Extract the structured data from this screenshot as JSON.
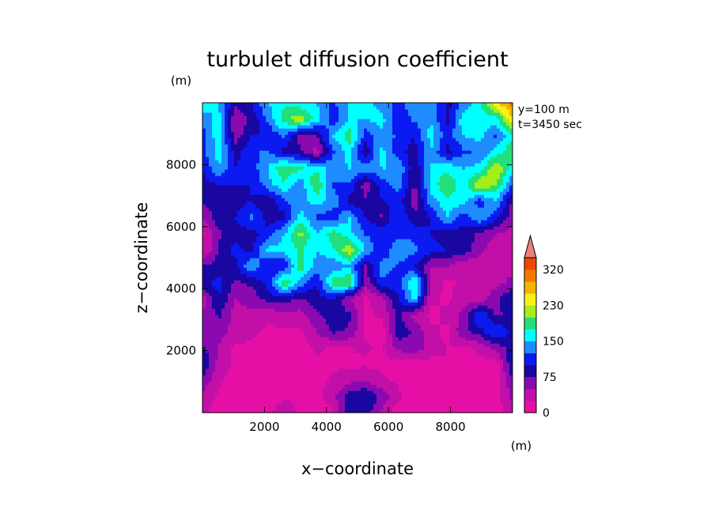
{
  "chart_data": {
    "type": "heatmap",
    "title": "turbulet diffusion coefficient",
    "xlabel": "x−coordinate",
    "ylabel": "z−coordinate",
    "x_unit": "(m)",
    "y_unit": "(m)",
    "annotations": [
      "y=100 m",
      "t=3450 sec"
    ],
    "xlim": [
      0,
      10000
    ],
    "ylim": [
      0,
      10000
    ],
    "xticks": [
      2000,
      4000,
      6000,
      8000
    ],
    "xtick_labels": [
      "2000",
      "4000",
      "6000",
      "8000"
    ],
    "yticks": [
      2000,
      4000,
      6000,
      8000
    ],
    "ytick_labels": [
      "2000",
      "4000",
      "6000",
      "8000"
    ],
    "colorbar": {
      "levels": [
        0,
        25,
        50,
        75,
        100,
        125,
        150,
        175,
        200,
        230,
        260,
        290,
        320
      ],
      "labeled_levels": [
        0,
        75,
        150,
        230,
        320
      ],
      "tick_labels": [
        "0",
        "75",
        "150",
        "230",
        "320"
      ],
      "colors": [
        "#e60fa5",
        "#c20fa8",
        "#8a0ab0",
        "#1a06a0",
        "#0a1af0",
        "#1e8cff",
        "#00ffff",
        "#21e07a",
        "#a5ee1a",
        "#f7f019",
        "#f5b400",
        "#f57800",
        "#f04600"
      ],
      "extend_color": "#e8827a",
      "extend": "max"
    },
    "field_nx": 20,
    "field_ny": 20,
    "field_rows_bottom_to_top": [
      [
        30,
        10,
        10,
        15,
        20,
        45,
        20,
        10,
        20,
        90,
        90,
        40,
        10,
        10,
        20,
        25,
        20,
        10,
        10,
        40
      ],
      [
        40,
        20,
        10,
        5,
        10,
        20,
        20,
        20,
        40,
        90,
        100,
        70,
        30,
        10,
        10,
        20,
        20,
        10,
        15,
        60
      ],
      [
        70,
        30,
        10,
        5,
        5,
        20,
        10,
        15,
        30,
        40,
        50,
        30,
        20,
        10,
        15,
        20,
        10,
        20,
        10,
        70
      ],
      [
        100,
        40,
        20,
        10,
        10,
        10,
        10,
        20,
        20,
        20,
        20,
        20,
        10,
        10,
        20,
        25,
        20,
        20,
        10,
        100
      ],
      [
        80,
        50,
        20,
        20,
        20,
        10,
        10,
        30,
        20,
        25,
        30,
        20,
        60,
        70,
        30,
        25,
        20,
        30,
        60,
        90
      ],
      [
        60,
        60,
        40,
        30,
        20,
        20,
        20,
        50,
        80,
        70,
        20,
        10,
        90,
        70,
        30,
        20,
        70,
        90,
        130,
        90
      ],
      [
        50,
        80,
        40,
        45,
        30,
        40,
        40,
        70,
        90,
        80,
        20,
        30,
        80,
        40,
        20,
        30,
        60,
        130,
        70,
        80
      ],
      [
        40,
        100,
        50,
        60,
        85,
        90,
        70,
        90,
        100,
        50,
        20,
        40,
        100,
        160,
        30,
        20,
        40,
        30,
        70,
        100
      ],
      [
        90,
        110,
        70,
        80,
        110,
        200,
        140,
        100,
        190,
        200,
        60,
        120,
        110,
        180,
        40,
        20,
        30,
        40,
        40,
        60
      ],
      [
        80,
        80,
        90,
        150,
        100,
        100,
        190,
        140,
        130,
        150,
        70,
        140,
        120,
        100,
        50,
        50,
        30,
        30,
        30,
        40
      ],
      [
        20,
        80,
        110,
        90,
        160,
        160,
        180,
        150,
        170,
        220,
        150,
        100,
        150,
        130,
        110,
        100,
        90,
        60,
        30,
        30
      ],
      [
        20,
        70,
        90,
        90,
        110,
        150,
        210,
        150,
        190,
        160,
        120,
        120,
        110,
        120,
        100,
        90,
        90,
        70,
        50,
        40
      ],
      [
        50,
        90,
        100,
        130,
        90,
        90,
        160,
        120,
        110,
        150,
        100,
        70,
        130,
        80,
        100,
        150,
        110,
        150,
        110,
        60
      ],
      [
        80,
        90,
        90,
        100,
        80,
        120,
        140,
        160,
        140,
        90,
        80,
        100,
        110,
        60,
        140,
        170,
        160,
        110,
        150,
        70
      ],
      [
        90,
        100,
        100,
        100,
        140,
        170,
        130,
        200,
        120,
        120,
        60,
        110,
        140,
        70,
        160,
        200,
        160,
        230,
        200,
        120
      ],
      [
        100,
        150,
        100,
        110,
        150,
        200,
        180,
        170,
        140,
        150,
        140,
        150,
        150,
        80,
        150,
        170,
        150,
        160,
        230,
        160
      ],
      [
        120,
        160,
        90,
        120,
        130,
        90,
        80,
        40,
        120,
        160,
        80,
        160,
        110,
        90,
        150,
        90,
        120,
        130,
        160,
        200
      ],
      [
        110,
        170,
        60,
        100,
        100,
        130,
        60,
        70,
        150,
        190,
        110,
        140,
        120,
        100,
        160,
        110,
        150,
        160,
        120,
        170
      ],
      [
        130,
        160,
        50,
        80,
        130,
        190,
        220,
        160,
        110,
        150,
        150,
        160,
        100,
        130,
        150,
        90,
        170,
        160,
        160,
        250
      ],
      [
        170,
        150,
        80,
        100,
        150,
        170,
        160,
        150,
        120,
        150,
        160,
        140,
        120,
        140,
        150,
        90,
        130,
        170,
        250,
        310
      ]
    ]
  }
}
